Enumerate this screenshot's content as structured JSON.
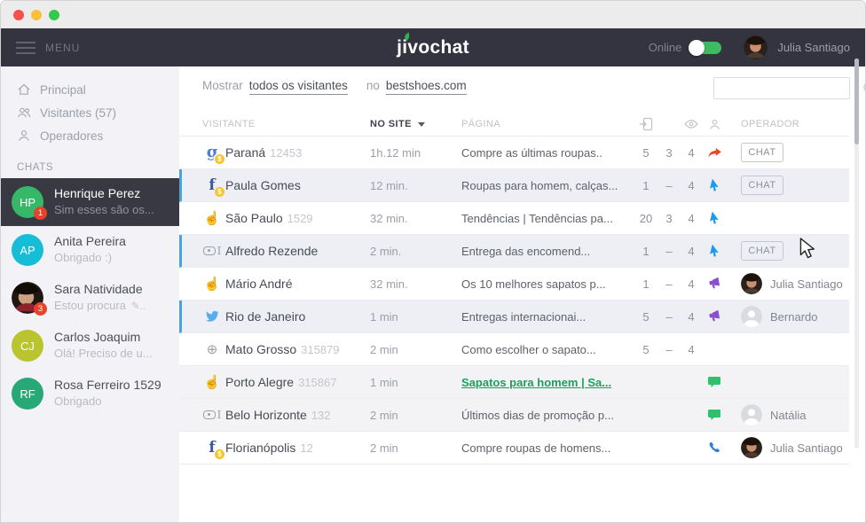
{
  "appbar": {
    "menu_label": "MENU",
    "logo_text": "jivochat",
    "online_label": "Online",
    "user_name": "Julia Santiago"
  },
  "colors": {
    "online_green": "#3dbb61",
    "active_row_border": "#4aa4dc",
    "page_link_green": "#18a15e",
    "badge_red": "#e8432a"
  },
  "sidebar": {
    "nav": [
      {
        "label": "Principal",
        "icon": "home-icon"
      },
      {
        "label": "Visitantes (57)",
        "icon": "visitors-icon"
      },
      {
        "label": "Operadores",
        "icon": "operator-icon"
      }
    ],
    "chats_heading": "CHATS",
    "chats": [
      {
        "name": "Henrique Perez",
        "preview": "Sim esses são os...",
        "avatar": {
          "type": "initials",
          "initials": "HP",
          "color": "#35b968"
        },
        "badge": "1",
        "selected": true
      },
      {
        "name": "Anita Pereira",
        "preview": "Obrigado :)",
        "avatar": {
          "type": "initials",
          "initials": "AP",
          "color": "#16bdd6"
        }
      },
      {
        "name": "Sara Natividade",
        "preview": "Estou procura",
        "typing": true,
        "avatar": {
          "type": "photo"
        },
        "badge": "3"
      },
      {
        "name": "Carlos Joaquim",
        "preview": "Olá! Preciso de u...",
        "avatar": {
          "type": "initials",
          "initials": "CJ",
          "color": "#b9c42e"
        }
      },
      {
        "name": "Rosa Ferreiro 1529",
        "preview": "Obrigado",
        "avatar": {
          "type": "initials",
          "initials": "RF",
          "color": "#28a877"
        }
      }
    ]
  },
  "main": {
    "filter": {
      "show_label": "Mostrar",
      "visitors_filter": "todos os visitantes",
      "on_label": "no",
      "site_filter": "bestshoes.com"
    },
    "search": {
      "value": "",
      "placeholder": "",
      "icon": "search-icon"
    },
    "table": {
      "headers": {
        "visitor": "VISITANTE",
        "on_site": "NO SITE",
        "page": "PÁGINA",
        "operator": "OPERADOR",
        "icon_columns": [
          "pages-visited-icon",
          "views-eye-icon",
          "visitor-person-icon"
        ]
      },
      "chat_button_label": "CHAT",
      "rows": [
        {
          "name": "Paraná",
          "suffix": "12453",
          "source_icon": "google",
          "monetized": true,
          "time": "1h.12 min",
          "page": "Compre as últimas roupas..",
          "n1": "5",
          "n2": "3",
          "n3": "4",
          "status_icon": "arrow-red",
          "chat_button": true
        },
        {
          "name": "Paula Gomes",
          "suffix": "",
          "source_icon": "facebook",
          "monetized": true,
          "time": "12 min.",
          "page": "Roupas para homem, calças...",
          "n1": "1",
          "n2": "–",
          "n3": "4",
          "status_icon": "cursor-blue",
          "chat_button": true,
          "row_style": "active"
        },
        {
          "name": "São Paulo",
          "suffix": "1529",
          "source_icon": "hand",
          "time": "32 min.",
          "page": "Tendências | Tendências pa...",
          "n1": "20",
          "n2": "3",
          "n3": "4",
          "status_icon": "cursor-blue"
        },
        {
          "name": "Alfredo Rezende",
          "suffix": "",
          "source_icon": "input",
          "time": "2 min.",
          "page": "Entrega das encomend...",
          "n1": "1",
          "n2": "–",
          "n3": "4",
          "status_icon": "cursor-blue",
          "chat_button": true,
          "row_style": "active"
        },
        {
          "name": "Mário André",
          "suffix": "",
          "source_icon": "hand",
          "time": "32 min.",
          "page": "Os 10 melhores sapatos p...",
          "n1": "1",
          "n2": "–",
          "n3": "4",
          "status_icon": "megaphone",
          "operator": {
            "name": "Julia Santiago",
            "avatar": "photo"
          }
        },
        {
          "name": "Rio de Janeiro",
          "suffix": "",
          "source_icon": "twitter",
          "time": "1 min",
          "page": "Entregas internacionai...",
          "n1": "5",
          "n2": "–",
          "n3": "4",
          "status_icon": "megaphone",
          "operator": {
            "name": "Bernardo",
            "avatar": "placeholder"
          },
          "row_style": "active"
        },
        {
          "name": "Mato Grosso",
          "suffix": "315879",
          "source_icon": "target",
          "time": "2 min",
          "page": "Como escolher o sapato...",
          "n1": "5",
          "n2": "–",
          "n3": "4"
        },
        {
          "name": "Porto Alegre",
          "suffix": "315867",
          "source_icon": "hand",
          "time": "1 min",
          "page": "Sapatos para homem | Sa...",
          "page_link": true,
          "status_icon": "bubble",
          "row_style": "gray"
        },
        {
          "name": "Belo Horizonte",
          "suffix": "132",
          "source_icon": "input",
          "time": "2 min",
          "page": "Últimos dias de promoção p...",
          "status_icon": "bubble",
          "operator": {
            "name": "Natália",
            "avatar": "placeholder"
          },
          "row_style": "gray"
        },
        {
          "name": "Florianópolis",
          "suffix": "12",
          "source_icon": "facebook",
          "monetized": true,
          "time": "2 min",
          "page": "Compre roupas de homens...",
          "status_icon": "phone",
          "operator": {
            "name": "Julia Santiago",
            "avatar": "photo"
          }
        }
      ]
    }
  }
}
